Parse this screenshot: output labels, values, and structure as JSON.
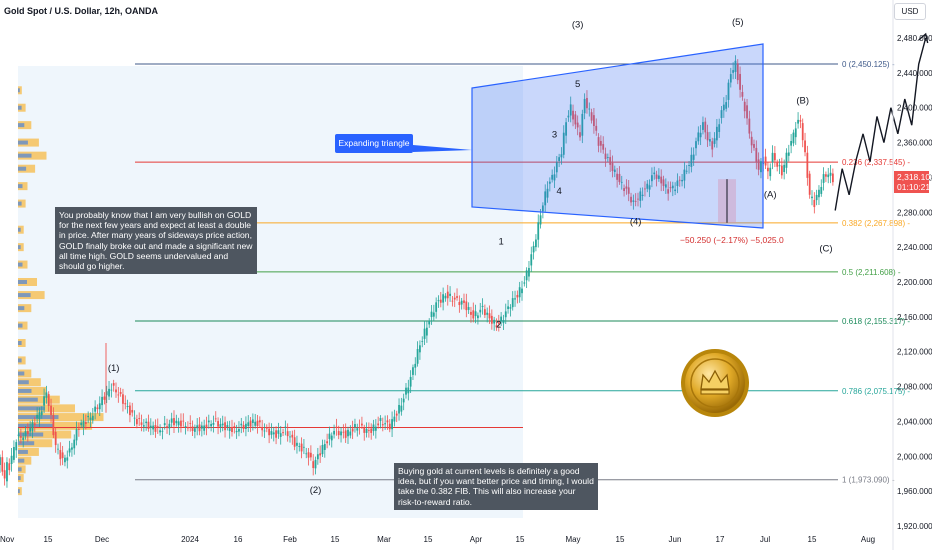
{
  "title": "Gold Spot / U.S. Dollar, 12h, OANDA",
  "currency": "USD",
  "current_price": "2,318.105",
  "countdown": "01:10:21",
  "callout": "Expanding triangle",
  "measure_label": "−50.250 (−2.17%) −5,025.0",
  "notes": [
    "You probably know that I am very bullish on GOLD for the next few years and expect at least a double in price. After many years of sideways price action, GOLD finally broke out and made a significant new all time high. GOLD seems undervalued and should go higher.",
    "Buying gold at current levels is definitely a good idea, but if you want better price and timing, I would take the 0.382 FIB. This will also increase your risk-to-reward ratio."
  ],
  "chart_data": {
    "type": "candlestick",
    "title": "Gold Spot / U.S. Dollar, 12h, OANDA",
    "y_ticks": [
      1920,
      1960,
      2000,
      2040,
      2080,
      2120,
      2160,
      2200,
      2240,
      2280,
      2320,
      2360,
      2400,
      2440,
      2480
    ],
    "x_ticks": [
      "Nov",
      "15",
      "Dec",
      "2024",
      "16",
      "Feb",
      "15",
      "Mar",
      "15",
      "Apr",
      "15",
      "May",
      "15",
      "Jun",
      "17",
      "Jul",
      "15",
      "Aug"
    ],
    "price_path": [
      [
        0,
        1990
      ],
      [
        1,
        1995
      ],
      [
        2,
        1985
      ],
      [
        3,
        1975
      ],
      [
        4,
        1990
      ],
      [
        5,
        1988
      ],
      [
        8,
        2020
      ],
      [
        12,
        2025
      ],
      [
        16,
        2040
      ],
      [
        19,
        2055
      ],
      [
        21,
        2075
      ],
      [
        25,
        2012
      ],
      [
        28,
        1995
      ],
      [
        31,
        2005
      ],
      [
        35,
        2035
      ],
      [
        40,
        2045
      ],
      [
        45,
        2065
      ],
      [
        49,
        2080
      ],
      [
        52,
        2072
      ],
      [
        56,
        2055
      ],
      [
        60,
        2040
      ],
      [
        65,
        2035
      ],
      [
        70,
        2030
      ],
      [
        75,
        2040
      ],
      [
        79,
        2038
      ],
      [
        84,
        2032
      ],
      [
        88,
        2033
      ],
      [
        93,
        2040
      ],
      [
        97,
        2035
      ],
      [
        102,
        2030
      ],
      [
        106,
        2035
      ],
      [
        111,
        2040
      ],
      [
        115,
        2030
      ],
      [
        120,
        2025
      ],
      [
        124,
        2030
      ],
      [
        128,
        2015
      ],
      [
        133,
        2005
      ],
      [
        136,
        1990
      ],
      [
        140,
        2010
      ],
      [
        145,
        2030
      ],
      [
        150,
        2025
      ],
      [
        155,
        2035
      ],
      [
        160,
        2028
      ],
      [
        165,
        2040
      ],
      [
        169,
        2035
      ],
      [
        174,
        2060
      ],
      [
        178,
        2090
      ],
      [
        181,
        2120
      ],
      [
        185,
        2150
      ],
      [
        189,
        2175
      ],
      [
        193,
        2185
      ],
      [
        197,
        2180
      ],
      [
        201,
        2175
      ],
      [
        205,
        2160
      ],
      [
        209,
        2170
      ],
      [
        212,
        2158
      ],
      [
        215,
        2150
      ],
      [
        218,
        2160
      ],
      [
        221,
        2175
      ],
      [
        224,
        2185
      ],
      [
        227,
        2200
      ],
      [
        229,
        2220
      ],
      [
        231,
        2240
      ],
      [
        233,
        2265
      ],
      [
        235,
        2290
      ],
      [
        237,
        2310
      ],
      [
        239,
        2320
      ],
      [
        241,
        2335
      ],
      [
        243,
        2350
      ],
      [
        245,
        2385
      ],
      [
        247,
        2400
      ],
      [
        249,
        2380
      ],
      [
        251,
        2370
      ],
      [
        253,
        2410
      ],
      [
        255,
        2395
      ],
      [
        257,
        2380
      ],
      [
        259,
        2360
      ],
      [
        262,
        2345
      ],
      [
        265,
        2330
      ],
      [
        268,
        2315
      ],
      [
        271,
        2305
      ],
      [
        274,
        2290
      ],
      [
        277,
        2300
      ],
      [
        280,
        2310
      ],
      [
        283,
        2325
      ],
      [
        286,
        2315
      ],
      [
        289,
        2305
      ],
      [
        292,
        2310
      ],
      [
        295,
        2320
      ],
      [
        298,
        2335
      ],
      [
        300,
        2350
      ],
      [
        302,
        2370
      ],
      [
        304,
        2380
      ],
      [
        306,
        2365
      ],
      [
        308,
        2355
      ],
      [
        310,
        2375
      ],
      [
        312,
        2395
      ],
      [
        314,
        2410
      ],
      [
        316,
        2440
      ],
      [
        318,
        2450
      ],
      [
        320,
        2420
      ],
      [
        322,
        2400
      ],
      [
        324,
        2370
      ],
      [
        326,
        2350
      ],
      [
        328,
        2330
      ],
      [
        330,
        2340
      ],
      [
        332,
        2325
      ],
      [
        334,
        2345
      ],
      [
        336,
        2335
      ],
      [
        338,
        2325
      ],
      [
        340,
        2345
      ],
      [
        342,
        2360
      ],
      [
        344,
        2380
      ],
      [
        346,
        2385
      ],
      [
        348,
        2345
      ],
      [
        350,
        2300
      ],
      [
        352,
        2290
      ],
      [
        354,
        2305
      ],
      [
        356,
        2320
      ],
      [
        358,
        2325
      ],
      [
        360,
        2318
      ]
    ],
    "projection": [
      [
        360,
        2282
      ],
      [
        363,
        2330
      ],
      [
        366,
        2300
      ],
      [
        369,
        2340
      ],
      [
        372,
        2370
      ],
      [
        375,
        2338
      ],
      [
        378,
        2390
      ],
      [
        381,
        2360
      ],
      [
        384,
        2400
      ],
      [
        387,
        2370
      ],
      [
        390,
        2410
      ],
      [
        393,
        2380
      ],
      [
        396,
        2450
      ],
      [
        399,
        2480
      ]
    ],
    "fib_levels": [
      {
        "label": "0 (2,450.125)",
        "value": 2450.125,
        "color": "#3f5a8a"
      },
      {
        "label": "0.236 (2,337.545)",
        "value": 2337.545,
        "color": "#e53935"
      },
      {
        "label": "0.382 (2,267.898)",
        "value": 2267.898,
        "color": "#f9a825"
      },
      {
        "label": "0.5 (2,211.608)",
        "value": 2211.608,
        "color": "#43a047"
      },
      {
        "label": "0.618 (2,155.317)",
        "value": 2155.317,
        "color": "#1b8a5a"
      },
      {
        "label": "0.786 (2,075.175)",
        "value": 2075.175,
        "color": "#26a69a"
      },
      {
        "label": "1 (1,973.090)",
        "value": 1973.09,
        "color": "#787b86"
      }
    ],
    "wave_labels": [
      {
        "text": "(1)",
        "x": 49,
        "y": 2098
      },
      {
        "text": "(2)",
        "x": 136,
        "y": 1958
      },
      {
        "text": "(3)",
        "x": 249,
        "y": 2492
      },
      {
        "text": "(4)",
        "x": 274,
        "y": 2266
      },
      {
        "text": "(5)",
        "x": 318,
        "y": 2495
      },
      {
        "text": "(A)",
        "x": 332,
        "y": 2297
      },
      {
        "text": "(B)",
        "x": 346,
        "y": 2405
      },
      {
        "text": "(C)",
        "x": 356,
        "y": 2235
      },
      {
        "text": "1",
        "x": 216,
        "y": 2243
      },
      {
        "text": "2",
        "x": 215,
        "y": 2148
      },
      {
        "text": "3",
        "x": 239,
        "y": 2366
      },
      {
        "text": "4",
        "x": 241,
        "y": 2301
      },
      {
        "text": "5",
        "x": 249,
        "y": 2424
      }
    ]
  }
}
